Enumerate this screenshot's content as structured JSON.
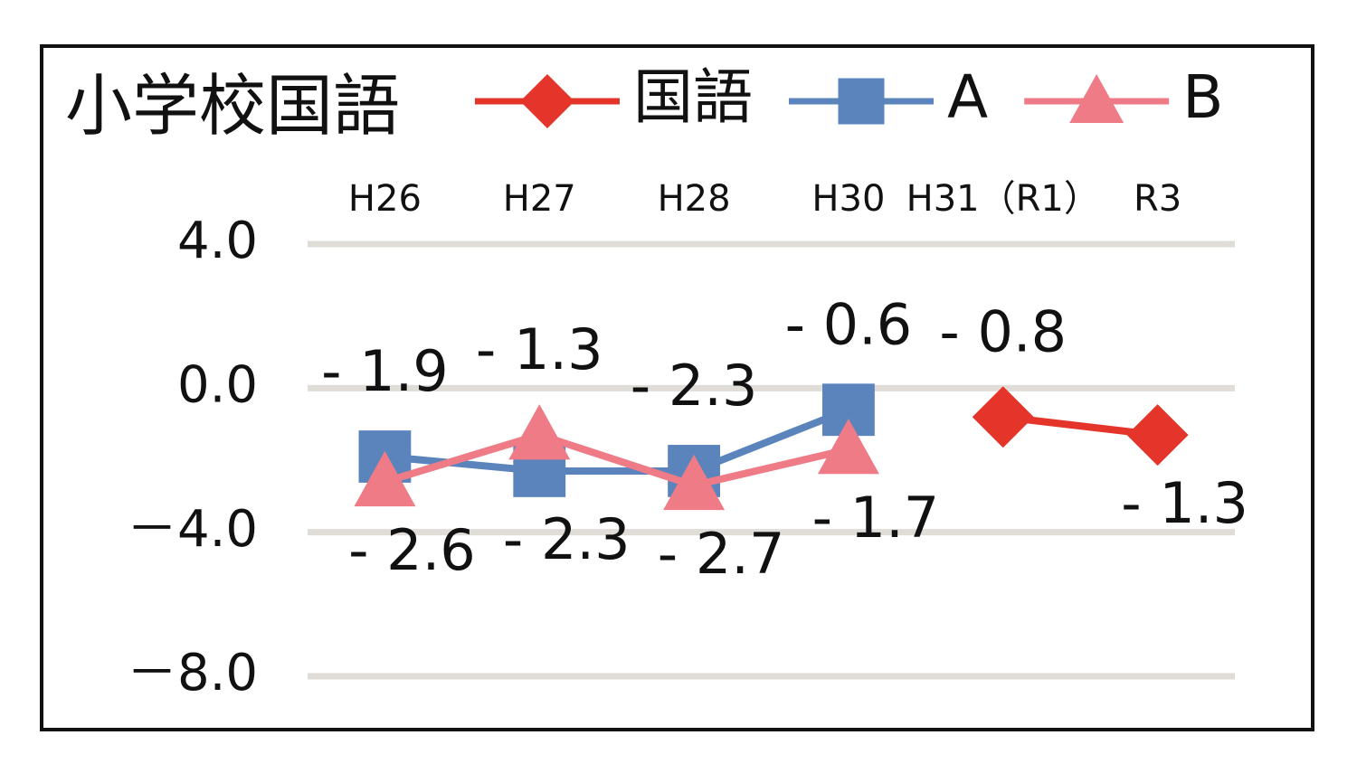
{
  "chart_data": {
    "type": "line",
    "title": "小学校国語",
    "categories": [
      "H26",
      "H27",
      "H28",
      "H30",
      "H31（R1）",
      "R3"
    ],
    "series": [
      {
        "name": "国語",
        "color": "#e5352b",
        "marker": "diamond",
        "values": [
          null,
          null,
          null,
          null,
          -0.8,
          -1.3
        ],
        "value_labels": [
          null,
          null,
          null,
          null,
          "- 0.8",
          "- 1.3"
        ]
      },
      {
        "name": "A",
        "color": "#5b84bd",
        "marker": "square",
        "values": [
          -1.9,
          -2.3,
          -2.3,
          -0.6,
          null,
          null
        ],
        "value_labels": [
          "- 1.9",
          "- 2.3",
          "- 2.3",
          "- 0.6",
          null,
          null
        ]
      },
      {
        "name": "B",
        "color": "#ee7b85",
        "marker": "triangle",
        "values": [
          -2.6,
          -1.3,
          -2.7,
          -1.7,
          null,
          null
        ],
        "value_labels": [
          "- 2.6",
          "- 1.3",
          "- 2.7",
          "- 1.7",
          null,
          null
        ]
      }
    ],
    "ylim": [
      -8,
      4
    ],
    "yticks": [
      {
        "value": 4,
        "label": "4.0"
      },
      {
        "value": 0,
        "label": "0.0"
      },
      {
        "value": -4,
        "label": "－4.0"
      },
      {
        "value": -8,
        "label": "－8.0"
      }
    ],
    "grid": true,
    "legend": "top"
  }
}
